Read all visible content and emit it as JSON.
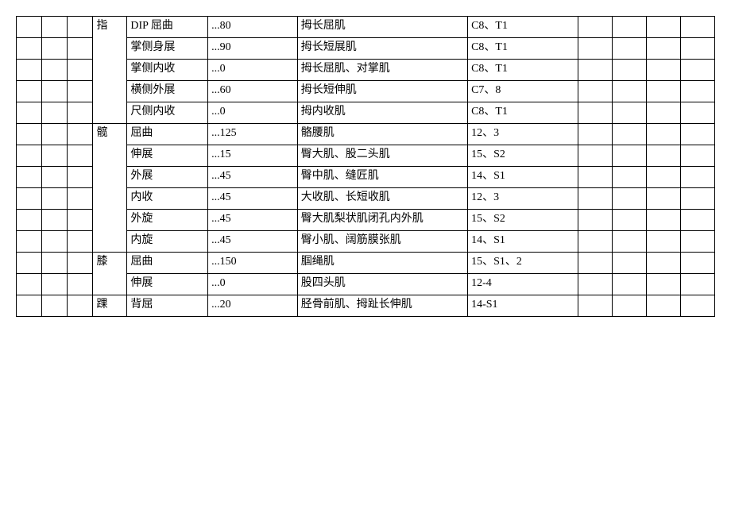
{
  "rows": [
    {
      "joint": "指",
      "motion": "DIP 屈曲",
      "range": "...80",
      "muscle": "拇长屈肌",
      "nerve": "C8、T1"
    },
    {
      "joint": "",
      "motion": "掌侧身展",
      "range": "...90",
      "muscle": "拇长短展肌",
      "nerve": "C8、T1"
    },
    {
      "joint": "",
      "motion": "掌侧内收",
      "range": "...0",
      "muscle": "拇长屈肌、对掌肌",
      "nerve": "C8、T1"
    },
    {
      "joint": "",
      "motion": "横侧外展",
      "range": "...60",
      "muscle": "拇长短伸肌",
      "nerve": "C7、8"
    },
    {
      "joint": "",
      "motion": "尺侧内收",
      "range": "...0",
      "muscle": "拇内收肌",
      "nerve": "C8、T1"
    },
    {
      "joint": "髋",
      "motion": "屈曲",
      "range": "...125",
      "muscle": "骼腰肌",
      "nerve": "12、3"
    },
    {
      "joint": "",
      "motion": "伸展",
      "range": "...15",
      "muscle": "臀大肌、股二头肌",
      "nerve": "15、S2"
    },
    {
      "joint": "",
      "motion": "外展",
      "range": "...45",
      "muscle": "臀中肌、缝匠肌",
      "nerve": "14、S1"
    },
    {
      "joint": "",
      "motion": "内收",
      "range": "...45",
      "muscle": "大收肌、长短收肌",
      "nerve": "12、3"
    },
    {
      "joint": "",
      "motion": "外旋",
      "range": "...45",
      "muscle": "臀大肌梨状肌闭孔内外肌",
      "nerve": "15、S2"
    },
    {
      "joint": "",
      "motion": "内旋",
      "range": "...45",
      "muscle": "臀小肌、阔筋膜张肌",
      "nerve": "14、S1"
    },
    {
      "joint": "膝",
      "motion": "屈曲",
      "range": "...150",
      "muscle": "腘绳肌",
      "nerve": "15、S1、2"
    },
    {
      "joint": "",
      "motion": "伸展",
      "range": "...0",
      "muscle": "股四头肌",
      "nerve": "12-4"
    },
    {
      "joint": "踝",
      "motion": "背屈",
      "range": "...20",
      "muscle": "胫骨前肌、拇趾长伸肌",
      "nerve": "14-S1"
    }
  ],
  "groups": {
    "finger_rowspan": 5,
    "hip_rowspan": 6,
    "knee_rowspan": 2,
    "ankle_rowspan": 1
  }
}
